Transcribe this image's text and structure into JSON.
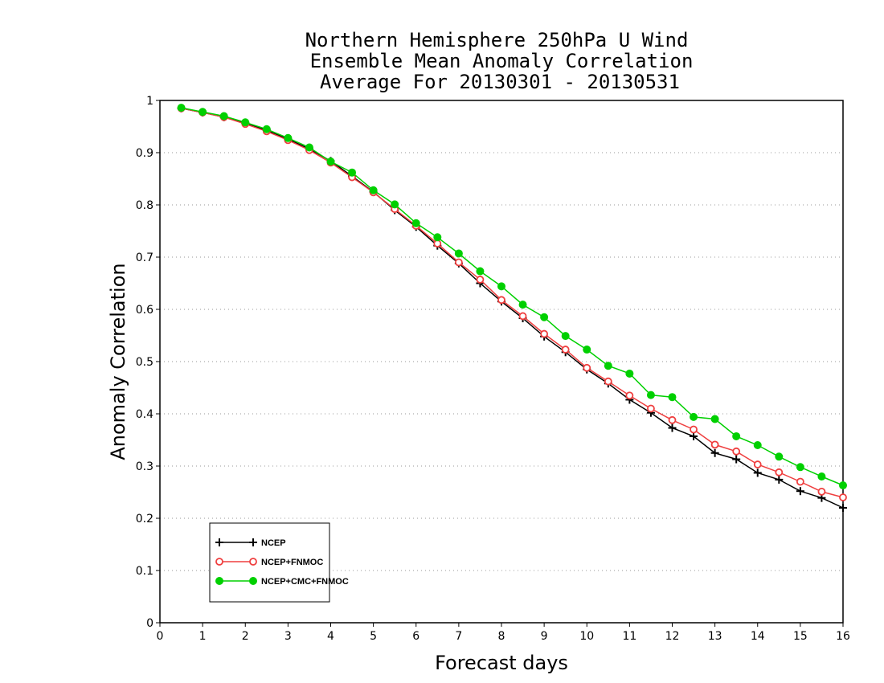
{
  "chart_data": {
    "type": "line",
    "title": [
      "Northern Hemisphere 250hPa U Wind",
      "Ensemble Mean Anomaly Correlation",
      "Average For 20130301 - 20130531"
    ],
    "xlabel": "Forecast days",
    "ylabel": "Anomaly Correlation",
    "xlim": [
      0,
      16
    ],
    "ylim": [
      0,
      1
    ],
    "xticks": [
      "0",
      "1",
      "2",
      "3",
      "4",
      "5",
      "6",
      "7",
      "8",
      "9",
      "10",
      "11",
      "12",
      "13",
      "14",
      "15",
      "16"
    ],
    "yticks": [
      "0",
      "0.1",
      "0.2",
      "0.3",
      "0.4",
      "0.5",
      "0.6",
      "0.7",
      "0.8",
      "0.9",
      "1"
    ],
    "ytick_values": [
      0,
      0.1,
      0.2,
      0.3,
      0.4,
      0.5,
      0.6,
      0.7,
      0.8,
      0.9,
      1
    ],
    "grid": "dotted-horizontal",
    "legend_position": "bottom-left",
    "x": [
      0.5,
      1,
      1.5,
      2,
      2.5,
      3,
      3.5,
      4,
      4.5,
      5,
      5.5,
      6,
      6.5,
      7,
      7.5,
      8,
      8.5,
      9,
      9.5,
      10,
      10.5,
      11,
      11.5,
      12,
      12.5,
      13,
      13.5,
      14,
      14.5,
      15,
      15.5,
      16
    ],
    "series": [
      {
        "name": "NCEP",
        "color": "#000000",
        "marker": "plus",
        "values": [
          0.985,
          0.977,
          0.968,
          0.957,
          0.943,
          0.926,
          0.907,
          0.884,
          0.855,
          0.825,
          0.79,
          0.758,
          0.722,
          0.688,
          0.65,
          0.615,
          0.583,
          0.548,
          0.518,
          0.485,
          0.458,
          0.427,
          0.402,
          0.373,
          0.357,
          0.325,
          0.313,
          0.287,
          0.274,
          0.252,
          0.239,
          0.22
        ]
      },
      {
        "name": "NCEP+FNMOC",
        "color": "#ef3f3f",
        "marker": "open-circle",
        "values": [
          0.985,
          0.977,
          0.968,
          0.955,
          0.941,
          0.924,
          0.905,
          0.881,
          0.853,
          0.824,
          0.792,
          0.76,
          0.726,
          0.69,
          0.657,
          0.618,
          0.587,
          0.553,
          0.523,
          0.488,
          0.462,
          0.435,
          0.41,
          0.388,
          0.37,
          0.341,
          0.328,
          0.303,
          0.288,
          0.27,
          0.251,
          0.24
        ]
      },
      {
        "name": "NCEP+CMC+FNMOC",
        "color": "#00d000",
        "marker": "filled-circle",
        "values": [
          0.986,
          0.978,
          0.97,
          0.958,
          0.945,
          0.928,
          0.91,
          0.883,
          0.862,
          0.828,
          0.801,
          0.765,
          0.738,
          0.707,
          0.673,
          0.644,
          0.609,
          0.585,
          0.549,
          0.523,
          0.492,
          0.477,
          0.436,
          0.432,
          0.394,
          0.39,
          0.357,
          0.34,
          0.318,
          0.298,
          0.28,
          0.263
        ]
      }
    ]
  }
}
